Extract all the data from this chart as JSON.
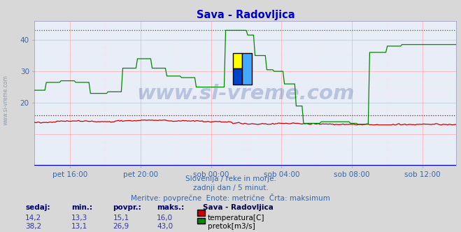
{
  "title": "Sava - Radovljica",
  "title_color": "#0000cc",
  "bg_color": "#d8d8d8",
  "plot_bg_color": "#e8eef8",
  "grid_color_major": "#ffaaaa",
  "grid_color_minor": "#ffcccc",
  "xlabel_ticks": [
    "pet 16:00",
    "pet 20:00",
    "sob 00:00",
    "sob 04:00",
    "sob 08:00",
    "sob 12:00"
  ],
  "ylim": [
    0,
    46
  ],
  "xlim_max": 287,
  "watermark": "www.si-vreme.com",
  "watermark_color": "#4466aa",
  "watermark_alpha": 0.3,
  "subtitle1": "Slovenija / reke in morje.",
  "subtitle2": "zadnji dan / 5 minut.",
  "subtitle3": "Meritve: povprečne  Enote: metrične  Črta: maksimum",
  "subtitle_color": "#3366aa",
  "legend_title": "Sava - Radovljica",
  "legend_title_color": "#000044",
  "temp_color": "#cc0000",
  "flow_color": "#008800",
  "level_color": "#0000cc",
  "temp_max_line": 16.0,
  "flow_max_line": 43.0,
  "table_headers": [
    "sedaj:",
    "min.:",
    "povpr.:",
    "maks.:"
  ],
  "table_header_color": "#000066",
  "table_value_color": "#3333aa",
  "temp_row": [
    "14,2",
    "13,3",
    "15,1",
    "16,0"
  ],
  "flow_row": [
    "38,2",
    "13,1",
    "26,9",
    "43,0"
  ],
  "temp_label": "temperatura[C]",
  "flow_label": "pretok[m3/s]",
  "tick_color": "#3366aa",
  "sidebar_text": "www.si-vreme.com",
  "sidebar_color": "#6688aa"
}
